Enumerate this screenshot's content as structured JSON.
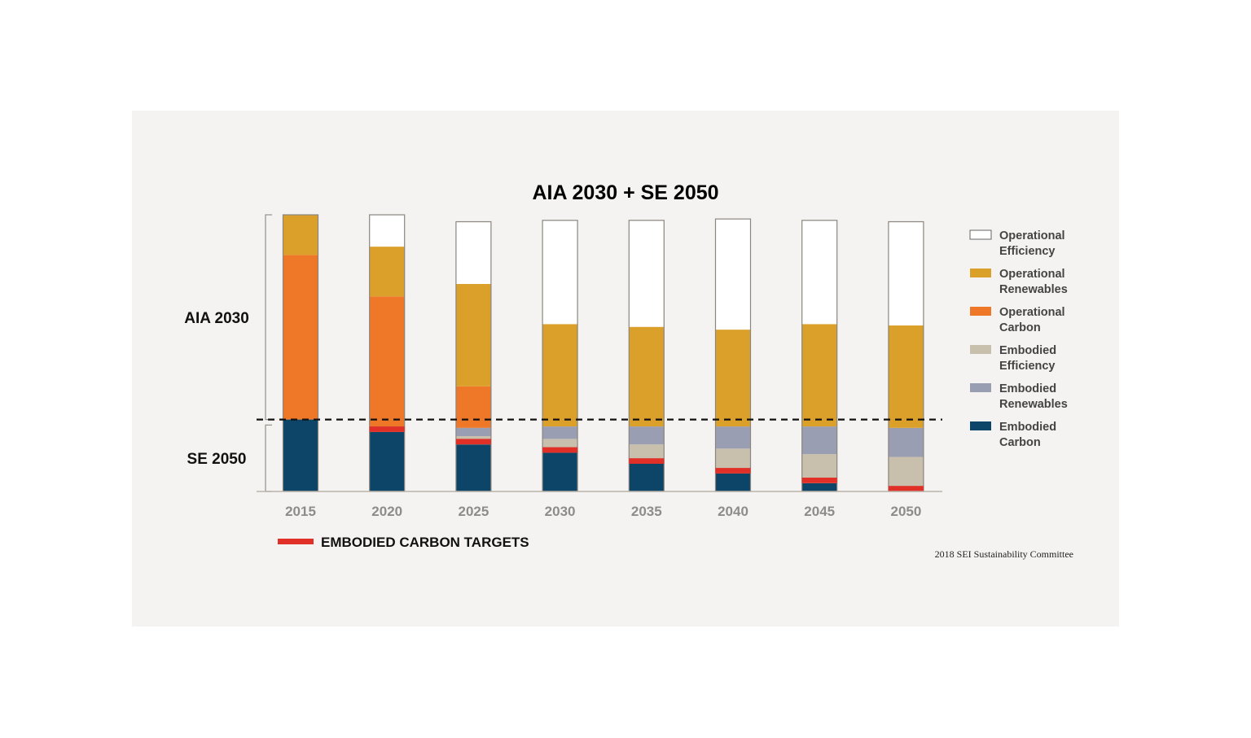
{
  "chart_data": {
    "type": "bar",
    "stacked": true,
    "title": "AIA 2030 + SE 2050",
    "categories": [
      "2015",
      "2020",
      "2025",
      "2030",
      "2035",
      "2040",
      "2045",
      "2050"
    ],
    "series": [
      {
        "name": "Embodied Carbon",
        "color": "#0d4568",
        "values": [
          26,
          21.5,
          17,
          14,
          10,
          6.5,
          3,
          0
        ]
      },
      {
        "name": "Embodied Efficiency",
        "color": "#c8bfad",
        "values": [
          0,
          0,
          3,
          5,
          7,
          9,
          10.5,
          12.5
        ]
      },
      {
        "name": "Embodied Renewables",
        "color": "#9a9eb3",
        "values": [
          0,
          2,
          3,
          4.5,
          6.5,
          8,
          10,
          10.5
        ]
      },
      {
        "name": "Operational Carbon",
        "color": "#ee7728",
        "values": [
          59.5,
          47,
          15,
          0,
          0,
          0,
          0,
          0
        ]
      },
      {
        "name": "Operational Renewables",
        "color": "#dba02a",
        "values": [
          14.5,
          18,
          37,
          37,
          36,
          35,
          37,
          37
        ]
      },
      {
        "name": "Operational Efficiency",
        "color": "#ffffff",
        "values": [
          0,
          11.5,
          22.5,
          37.5,
          38.5,
          40,
          37.5,
          37.5
        ]
      }
    ],
    "embodied_carbon_targets": {
      "name": "EMBODIED CARBON TARGETS",
      "color": "#e03028",
      "values": [
        null,
        2,
        2,
        2,
        2,
        2,
        2,
        2
      ]
    },
    "ylim": [
      0,
      100
    ],
    "threshold": 26,
    "left_labels": [
      {
        "label": "AIA 2030",
        "from": 26,
        "to": 100
      },
      {
        "label": "SE 2050",
        "from": 0,
        "to": 24
      }
    ],
    "legend_order": [
      "Operational Efficiency",
      "Operational Renewables",
      "Operational Carbon",
      "Embodied Efficiency",
      "Embodied Renewables",
      "Embodied Carbon"
    ],
    "legend_placement": "right",
    "xlabel": "",
    "ylabel": "",
    "grid": false
  },
  "legend_items": [
    {
      "line1": "Operational",
      "line2": "Efficiency",
      "color": "#ffffff"
    },
    {
      "line1": "Operational",
      "line2": "Renewables",
      "color": "#dba02a"
    },
    {
      "line1": "Operational",
      "line2": "Carbon",
      "color": "#ee7728"
    },
    {
      "line1": "Embodied",
      "line2": "Efficiency",
      "color": "#c8bfad"
    },
    {
      "line1": "Embodied",
      "line2": "Renewables",
      "color": "#9a9eb3"
    },
    {
      "line1": "Embodied",
      "line2": "Carbon",
      "color": "#0d4568"
    }
  ],
  "credit": "2018 SEI Sustainability Committee",
  "colors": {
    "panel": "#f4f3f1",
    "bar_outline": "#8a857d",
    "axis_text": "#8c8c8c"
  }
}
